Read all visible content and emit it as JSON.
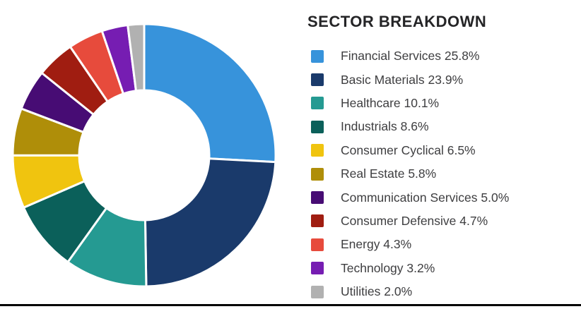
{
  "chart_data": {
    "type": "pie",
    "subtype": "donut",
    "title": "SECTOR BREAKDOWN",
    "legend_position": "right",
    "start_angle": "top",
    "direction": "clockwise",
    "inner_radius_ratio": 0.49,
    "gap_color": "#ffffff",
    "total": 99.9,
    "segments": [
      {
        "label": "Financial Services",
        "value": 25.8,
        "percent_text": "25.8%",
        "color": "#3793DB"
      },
      {
        "label": "Basic Materials",
        "value": 23.9,
        "percent_text": "23.9%",
        "color": "#1A3A6B"
      },
      {
        "label": "Healthcare",
        "value": 10.1,
        "percent_text": "10.1%",
        "color": "#259A92"
      },
      {
        "label": "Industrials",
        "value": 8.6,
        "percent_text": "8.6%",
        "color": "#0B605A"
      },
      {
        "label": "Consumer Cyclical",
        "value": 6.5,
        "percent_text": "6.5%",
        "color": "#F0C40F"
      },
      {
        "label": "Real Estate",
        "value": 5.8,
        "percent_text": "5.8%",
        "color": "#AF8E09"
      },
      {
        "label": "Communication Services",
        "value": 5.0,
        "percent_text": "5.0%",
        "color": "#470C74"
      },
      {
        "label": "Consumer Defensive",
        "value": 4.7,
        "percent_text": "4.7%",
        "color": "#A01D11"
      },
      {
        "label": "Energy",
        "value": 4.3,
        "percent_text": "4.3%",
        "color": "#E74B3C"
      },
      {
        "label": "Technology",
        "value": 3.2,
        "percent_text": "3.2%",
        "color": "#761DB2"
      },
      {
        "label": "Utilities",
        "value": 2.0,
        "percent_text": "2.0%",
        "color": "#B1B1B1"
      }
    ]
  }
}
